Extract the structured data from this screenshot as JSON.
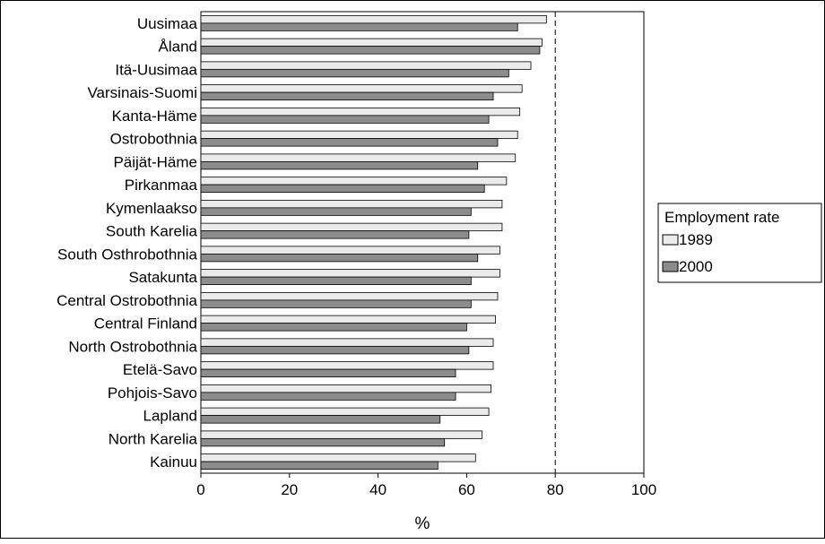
{
  "chart_data": {
    "type": "bar",
    "orientation": "horizontal",
    "categories": [
      "Uusimaa",
      "Åland",
      "Itä-Uusimaa",
      "Varsinais-Suomi",
      "Kanta-Häme",
      "Ostrobothnia",
      "Päijät-Häme",
      "Pirkanmaa",
      "Kymenlaakso",
      "South Karelia",
      "South Osthrobothnia",
      "Satakunta",
      "Central Ostrobothnia",
      "Central Finland",
      "North Ostrobothnia",
      "Etelä-Savo",
      "Pohjois-Savo",
      "Lapland",
      "North Karelia",
      "Kainuu"
    ],
    "series": [
      {
        "name": "1989",
        "values": [
          78,
          77,
          74.5,
          72.5,
          72,
          71.5,
          71,
          69,
          68,
          68,
          67.5,
          67.5,
          67,
          66.5,
          66,
          66,
          65.5,
          65,
          63.5,
          62
        ],
        "color": "#ebebeb"
      },
      {
        "name": "2000",
        "values": [
          71.5,
          76.5,
          69.5,
          66,
          65,
          67,
          62.5,
          64,
          61,
          60.5,
          62.5,
          61,
          61,
          60,
          60.5,
          57.5,
          57.5,
          54,
          55,
          53.5
        ],
        "color": "#8c8c8c"
      }
    ],
    "xlim": [
      0,
      100
    ],
    "xticks": [
      0,
      20,
      40,
      60,
      80,
      100
    ],
    "xlabel": "%",
    "reference_line": 80,
    "legend": {
      "title": "Employment rate",
      "position": "right"
    }
  }
}
